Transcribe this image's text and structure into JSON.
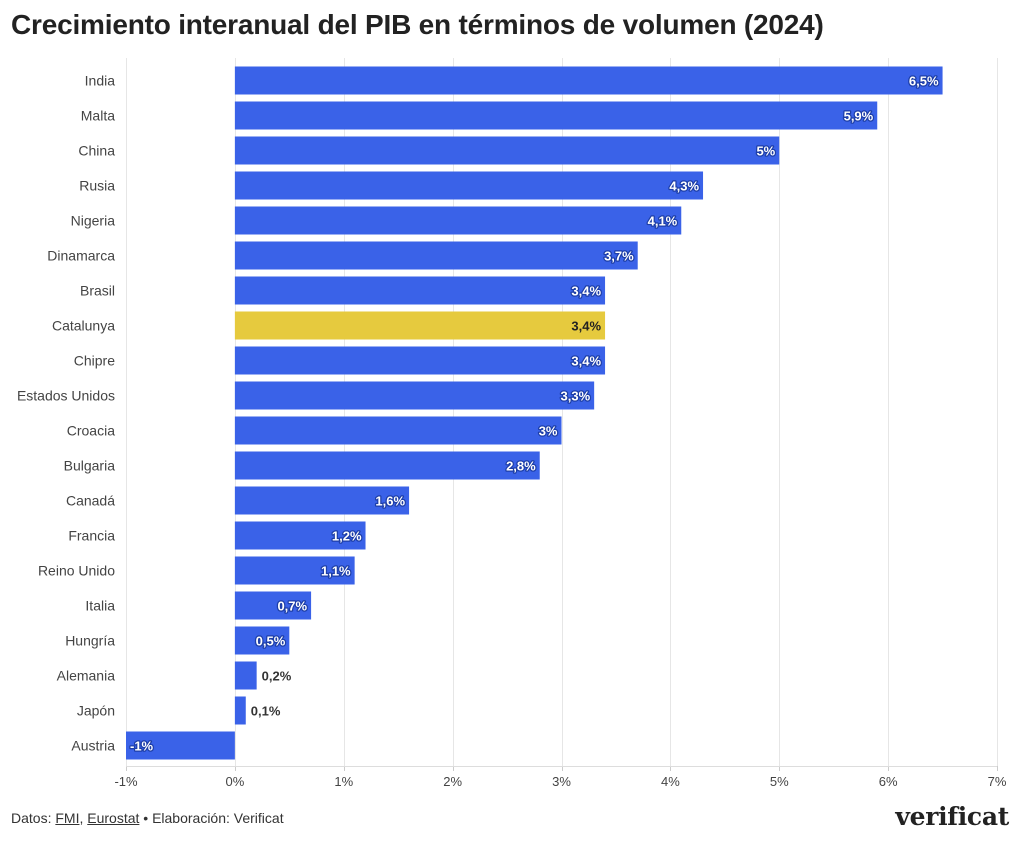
{
  "title": "Crecimiento interanual del PIB en términos de volumen (2024)",
  "colors": {
    "bar": "#3a62e8",
    "highlight": "#e6ca3e",
    "grid": "#e6e6e6"
  },
  "chart_data": {
    "type": "bar",
    "orientation": "horizontal",
    "title": "Crecimiento interanual del PIB en términos de volumen (2024)",
    "xlabel": "",
    "ylabel": "",
    "xlim": [
      -1,
      7
    ],
    "xticks": [
      -1,
      0,
      1,
      2,
      3,
      4,
      5,
      6,
      7
    ],
    "xtick_labels": [
      "-1%",
      "0%",
      "1%",
      "2%",
      "3%",
      "4%",
      "5%",
      "6%",
      "7%"
    ],
    "grid": true,
    "highlight": "Catalunya",
    "categories": [
      "India",
      "Malta",
      "China",
      "Rusia",
      "Nigeria",
      "Dinamarca",
      "Brasil",
      "Catalunya",
      "Chipre",
      "Estados Unidos",
      "Croacia",
      "Bulgaria",
      "Canadá",
      "Francia",
      "Reino Unido",
      "Italia",
      "Hungría",
      "Alemania",
      "Japón",
      "Austria"
    ],
    "values": [
      6.5,
      5.9,
      5.0,
      4.3,
      4.1,
      3.7,
      3.4,
      3.4,
      3.4,
      3.3,
      3.0,
      2.8,
      1.6,
      1.2,
      1.1,
      0.7,
      0.5,
      0.2,
      0.1,
      -1.0
    ],
    "value_labels": [
      "6,5%",
      "5,9%",
      "5%",
      "4,3%",
      "4,1%",
      "3,7%",
      "3,4%",
      "3,4%",
      "3,4%",
      "3,3%",
      "3%",
      "2,8%",
      "1,6%",
      "1,2%",
      "1,1%",
      "0,7%",
      "0,5%",
      "0,2%",
      "0,1%",
      "-1%"
    ]
  },
  "footer": {
    "prefix": "Datos: ",
    "source1": "FMI",
    "separator": ", ",
    "source2": "Eurostat",
    "suffix": " • Elaboración: Verificat"
  },
  "logo": "verificat"
}
